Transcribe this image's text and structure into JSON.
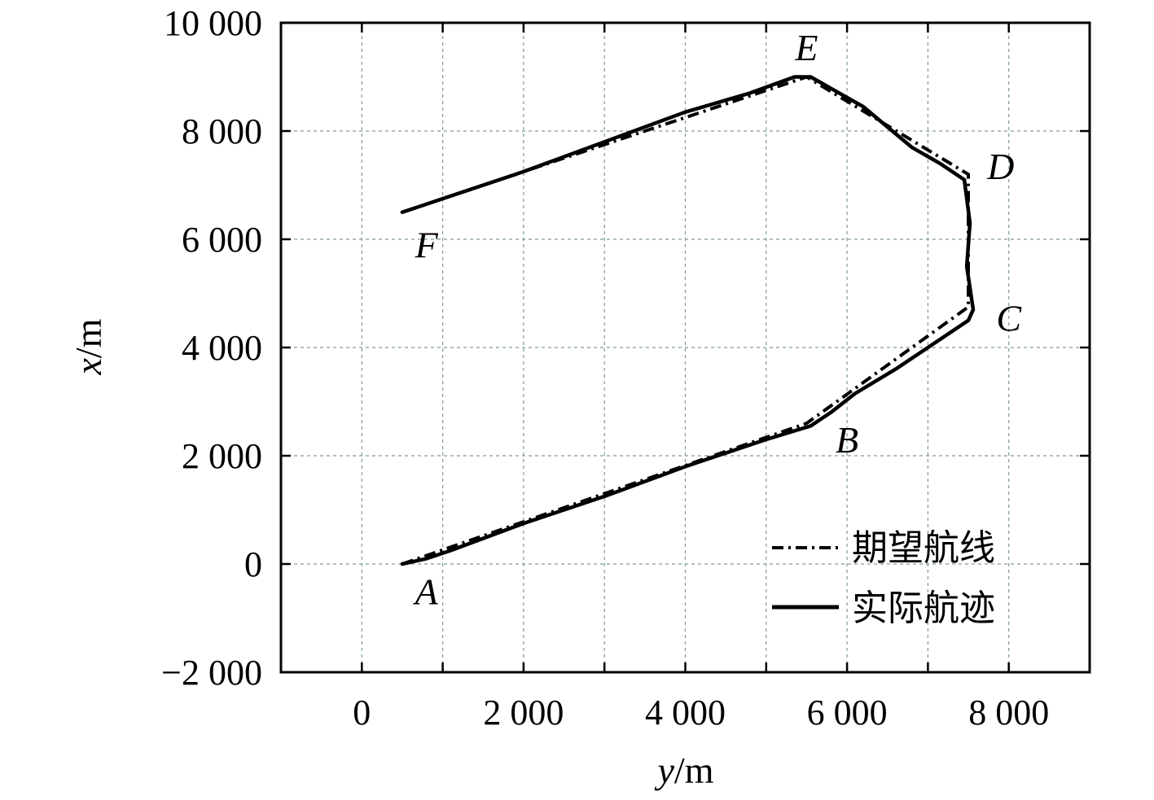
{
  "chart_data": {
    "type": "line",
    "xlabel_var": "y",
    "xlabel_unit": "/m",
    "ylabel_var": "x",
    "ylabel_unit": "/m",
    "xlim": [
      -1000,
      9000
    ],
    "ylim": [
      -2000,
      10000
    ],
    "x_ticks": [
      0,
      2000,
      4000,
      6000,
      8000
    ],
    "x_tick_labels": [
      "0",
      "2 000",
      "4 000",
      "6 000",
      "8 000"
    ],
    "y_ticks": [
      -2000,
      0,
      2000,
      4000,
      6000,
      8000,
      10000
    ],
    "y_tick_labels": [
      "−2 000",
      "0",
      "2 000",
      "4 000",
      "6 000",
      "8 000",
      "10 000"
    ],
    "grid": true,
    "legend_position": "bottom-right",
    "series": [
      {
        "name": "期望航线",
        "style": "dashdot",
        "x": [
          500,
          5500,
          7500,
          7500,
          5500,
          500
        ],
        "y": [
          0,
          2600,
          4750,
          7200,
          9000,
          6500
        ]
      },
      {
        "name": "实际航迹",
        "style": "solid",
        "x": [
          500,
          800,
          1100,
          2000,
          3000,
          4000,
          5000,
          5550,
          5800,
          6100,
          6600,
          7100,
          7500,
          7560,
          7480,
          7520,
          7450,
          7150,
          6800,
          6200,
          5550,
          5350,
          4800,
          4000,
          3000,
          2000,
          1000,
          500
        ],
        "y": [
          0,
          100,
          250,
          750,
          1250,
          1800,
          2300,
          2550,
          2800,
          3150,
          3600,
          4100,
          4500,
          4700,
          5500,
          6300,
          7100,
          7400,
          7700,
          8450,
          9000,
          9000,
          8700,
          8350,
          7800,
          7250,
          6750,
          6500
        ]
      }
    ],
    "annotations": [
      {
        "text": "A",
        "x": 800,
        "y": -500
      },
      {
        "text": "B",
        "x": 6000,
        "y": 2300
      },
      {
        "text": "C",
        "x": 8000,
        "y": 4550
      },
      {
        "text": "D",
        "x": 7900,
        "y": 7350
      },
      {
        "text": "E",
        "x": 5500,
        "y": 9550
      },
      {
        "text": "F",
        "x": 800,
        "y": 5900
      }
    ]
  }
}
